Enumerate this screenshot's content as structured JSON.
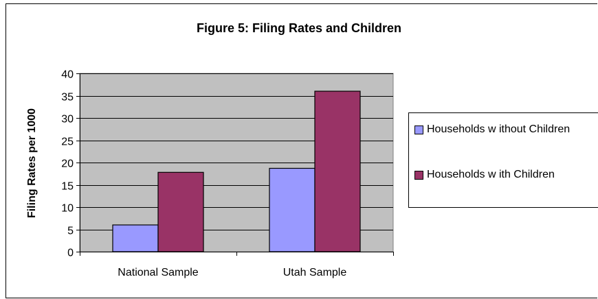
{
  "chart_data": {
    "type": "bar",
    "title": "Figure 5:  Filing Rates and Children",
    "xlabel": "",
    "ylabel": "Filing Rates per 1000",
    "categories": [
      "National Sample",
      "Utah Sample"
    ],
    "series": [
      {
        "name": "Households w ithout Children",
        "values": [
          6,
          18.7
        ],
        "color": "#9999ff"
      },
      {
        "name": "Households w ith Children",
        "values": [
          17.8,
          36
        ],
        "color": "#993366"
      }
    ],
    "ylim": [
      0,
      40
    ],
    "yticks": [
      0,
      5,
      10,
      15,
      20,
      25,
      30,
      35,
      40
    ],
    "grid": true,
    "legend_position": "right",
    "plot_background": "#c0c0c0"
  }
}
